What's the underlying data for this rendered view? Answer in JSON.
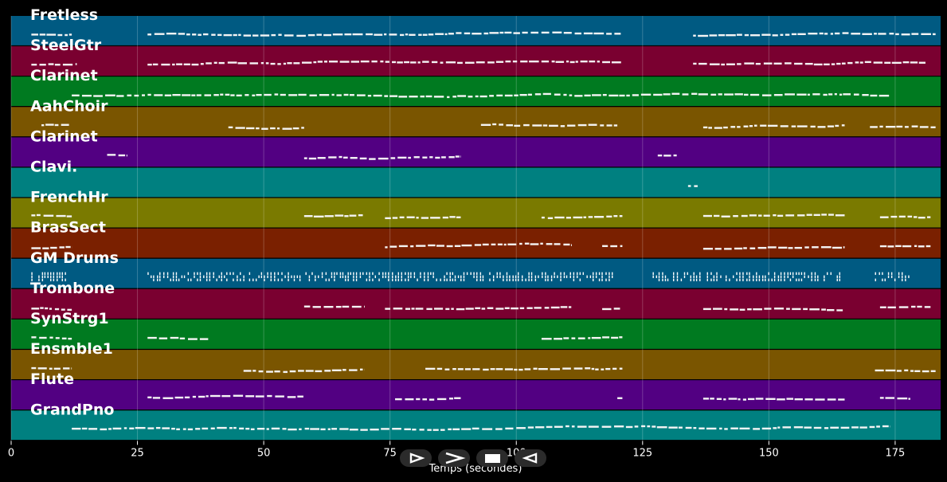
{
  "chart_data": {
    "type": "piano-roll",
    "xlabel": "Temps (secondes)",
    "xlim": [
      0,
      184
    ],
    "xticks": [
      0,
      25,
      50,
      75,
      100,
      125,
      150,
      175
    ],
    "tracks": [
      {
        "name": "Fretless",
        "color": "#005a82",
        "segments": [
          [
            4,
            12
          ],
          [
            27,
            121
          ],
          [
            135,
            183
          ]
        ]
      },
      {
        "name": "SteelGtr",
        "color": "#7a0030",
        "segments": [
          [
            4,
            13
          ],
          [
            27,
            121
          ],
          [
            135,
            181
          ]
        ]
      },
      {
        "name": "Clarinet",
        "color": "#007a20",
        "segments": [
          [
            12,
            174
          ]
        ]
      },
      {
        "name": "AahChoir",
        "color": "#7a5500",
        "segments": [
          [
            6,
            12
          ],
          [
            43,
            58
          ],
          [
            93,
            120
          ],
          [
            137,
            165
          ],
          [
            170,
            183
          ]
        ]
      },
      {
        "name": "Clarinet",
        "color": "#520082",
        "segments": [
          [
            19,
            23
          ],
          [
            58,
            89
          ],
          [
            128,
            132
          ]
        ]
      },
      {
        "name": "Clavi.",
        "color": "#008080",
        "segments": [
          [
            134,
            136
          ]
        ]
      },
      {
        "name": "FrenchHr",
        "color": "#7a7a00",
        "segments": [
          [
            4,
            12
          ],
          [
            58,
            70
          ],
          [
            74,
            89
          ],
          [
            105,
            121
          ],
          [
            137,
            165
          ],
          [
            172,
            182
          ]
        ]
      },
      {
        "name": "BrasSect",
        "color": "#7a2000",
        "segments": [
          [
            4,
            12
          ],
          [
            74,
            111
          ],
          [
            117,
            121
          ],
          [
            137,
            165
          ],
          [
            172,
            182
          ]
        ]
      },
      {
        "name": "GM Drums",
        "color": "#005a82",
        "segments": [
          [
            4,
            11
          ],
          [
            27,
            119
          ],
          [
            127,
            164
          ],
          [
            171,
            178
          ]
        ]
      },
      {
        "name": "Trombone",
        "color": "#7a0030",
        "segments": [
          [
            4,
            12
          ],
          [
            58,
            70
          ],
          [
            74,
            111
          ],
          [
            117,
            121
          ],
          [
            137,
            165
          ],
          [
            172,
            182
          ]
        ]
      },
      {
        "name": "SynStrg1",
        "color": "#007a20",
        "segments": [
          [
            4,
            12
          ],
          [
            27,
            39
          ],
          [
            105,
            121
          ]
        ]
      },
      {
        "name": "Ensmble1",
        "color": "#7a5500",
        "segments": [
          [
            4,
            12
          ],
          [
            46,
            70
          ],
          [
            82,
            121
          ],
          [
            171,
            183
          ]
        ]
      },
      {
        "name": "Flute",
        "color": "#520082",
        "segments": [
          [
            27,
            58
          ],
          [
            76,
            89
          ],
          [
            120,
            121
          ],
          [
            137,
            165
          ],
          [
            172,
            178
          ]
        ]
      },
      {
        "name": "GrandPno",
        "color": "#008080",
        "segments": [
          [
            12,
            174
          ]
        ]
      }
    ]
  },
  "controls": {
    "play_icon": "play-outline-icon",
    "forward_icon": "forward-arrow-icon",
    "stop_icon": "stop-icon",
    "back_icon": "back-arrow-icon"
  }
}
